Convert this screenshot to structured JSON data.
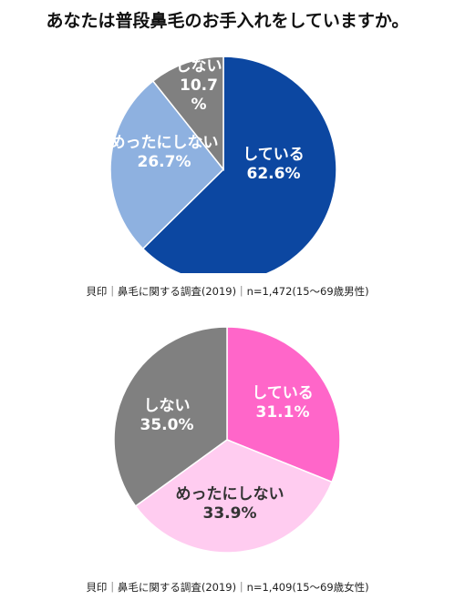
{
  "title": "あなたは普段鼻毛のお手入れをしていますか。",
  "chart_data": [
    {
      "type": "pie",
      "caption": "貝印｜鼻毛に関する調査(2019)｜n=1,472(15～69歳男性)",
      "slices": [
        {
          "label": "している",
          "value": 62.6,
          "display": "62.6%",
          "color": "#0C47A1",
          "text_color": "#ffffff"
        },
        {
          "label": "めったにしない",
          "value": 26.7,
          "display": "26.7%",
          "color": "#8EB1E0",
          "text_color": "#ffffff"
        },
        {
          "label": "しない",
          "value": 10.7,
          "display": "10.7\n%",
          "color": "#808080",
          "text_color": "#ffffff"
        }
      ]
    },
    {
      "type": "pie",
      "caption": "貝印｜鼻毛に関する調査(2019)｜n=1,409(15～69歳女性)",
      "slices": [
        {
          "label": "している",
          "value": 31.1,
          "display": "31.1%",
          "color": "#FF66C9",
          "text_color": "#ffffff"
        },
        {
          "label": "めったにしない",
          "value": 33.9,
          "display": "33.9%",
          "color": "#FFCCF0",
          "text_color": "#333333"
        },
        {
          "label": "しない",
          "value": 35.0,
          "display": "35.0%",
          "color": "#808080",
          "text_color": "#ffffff"
        }
      ]
    }
  ]
}
